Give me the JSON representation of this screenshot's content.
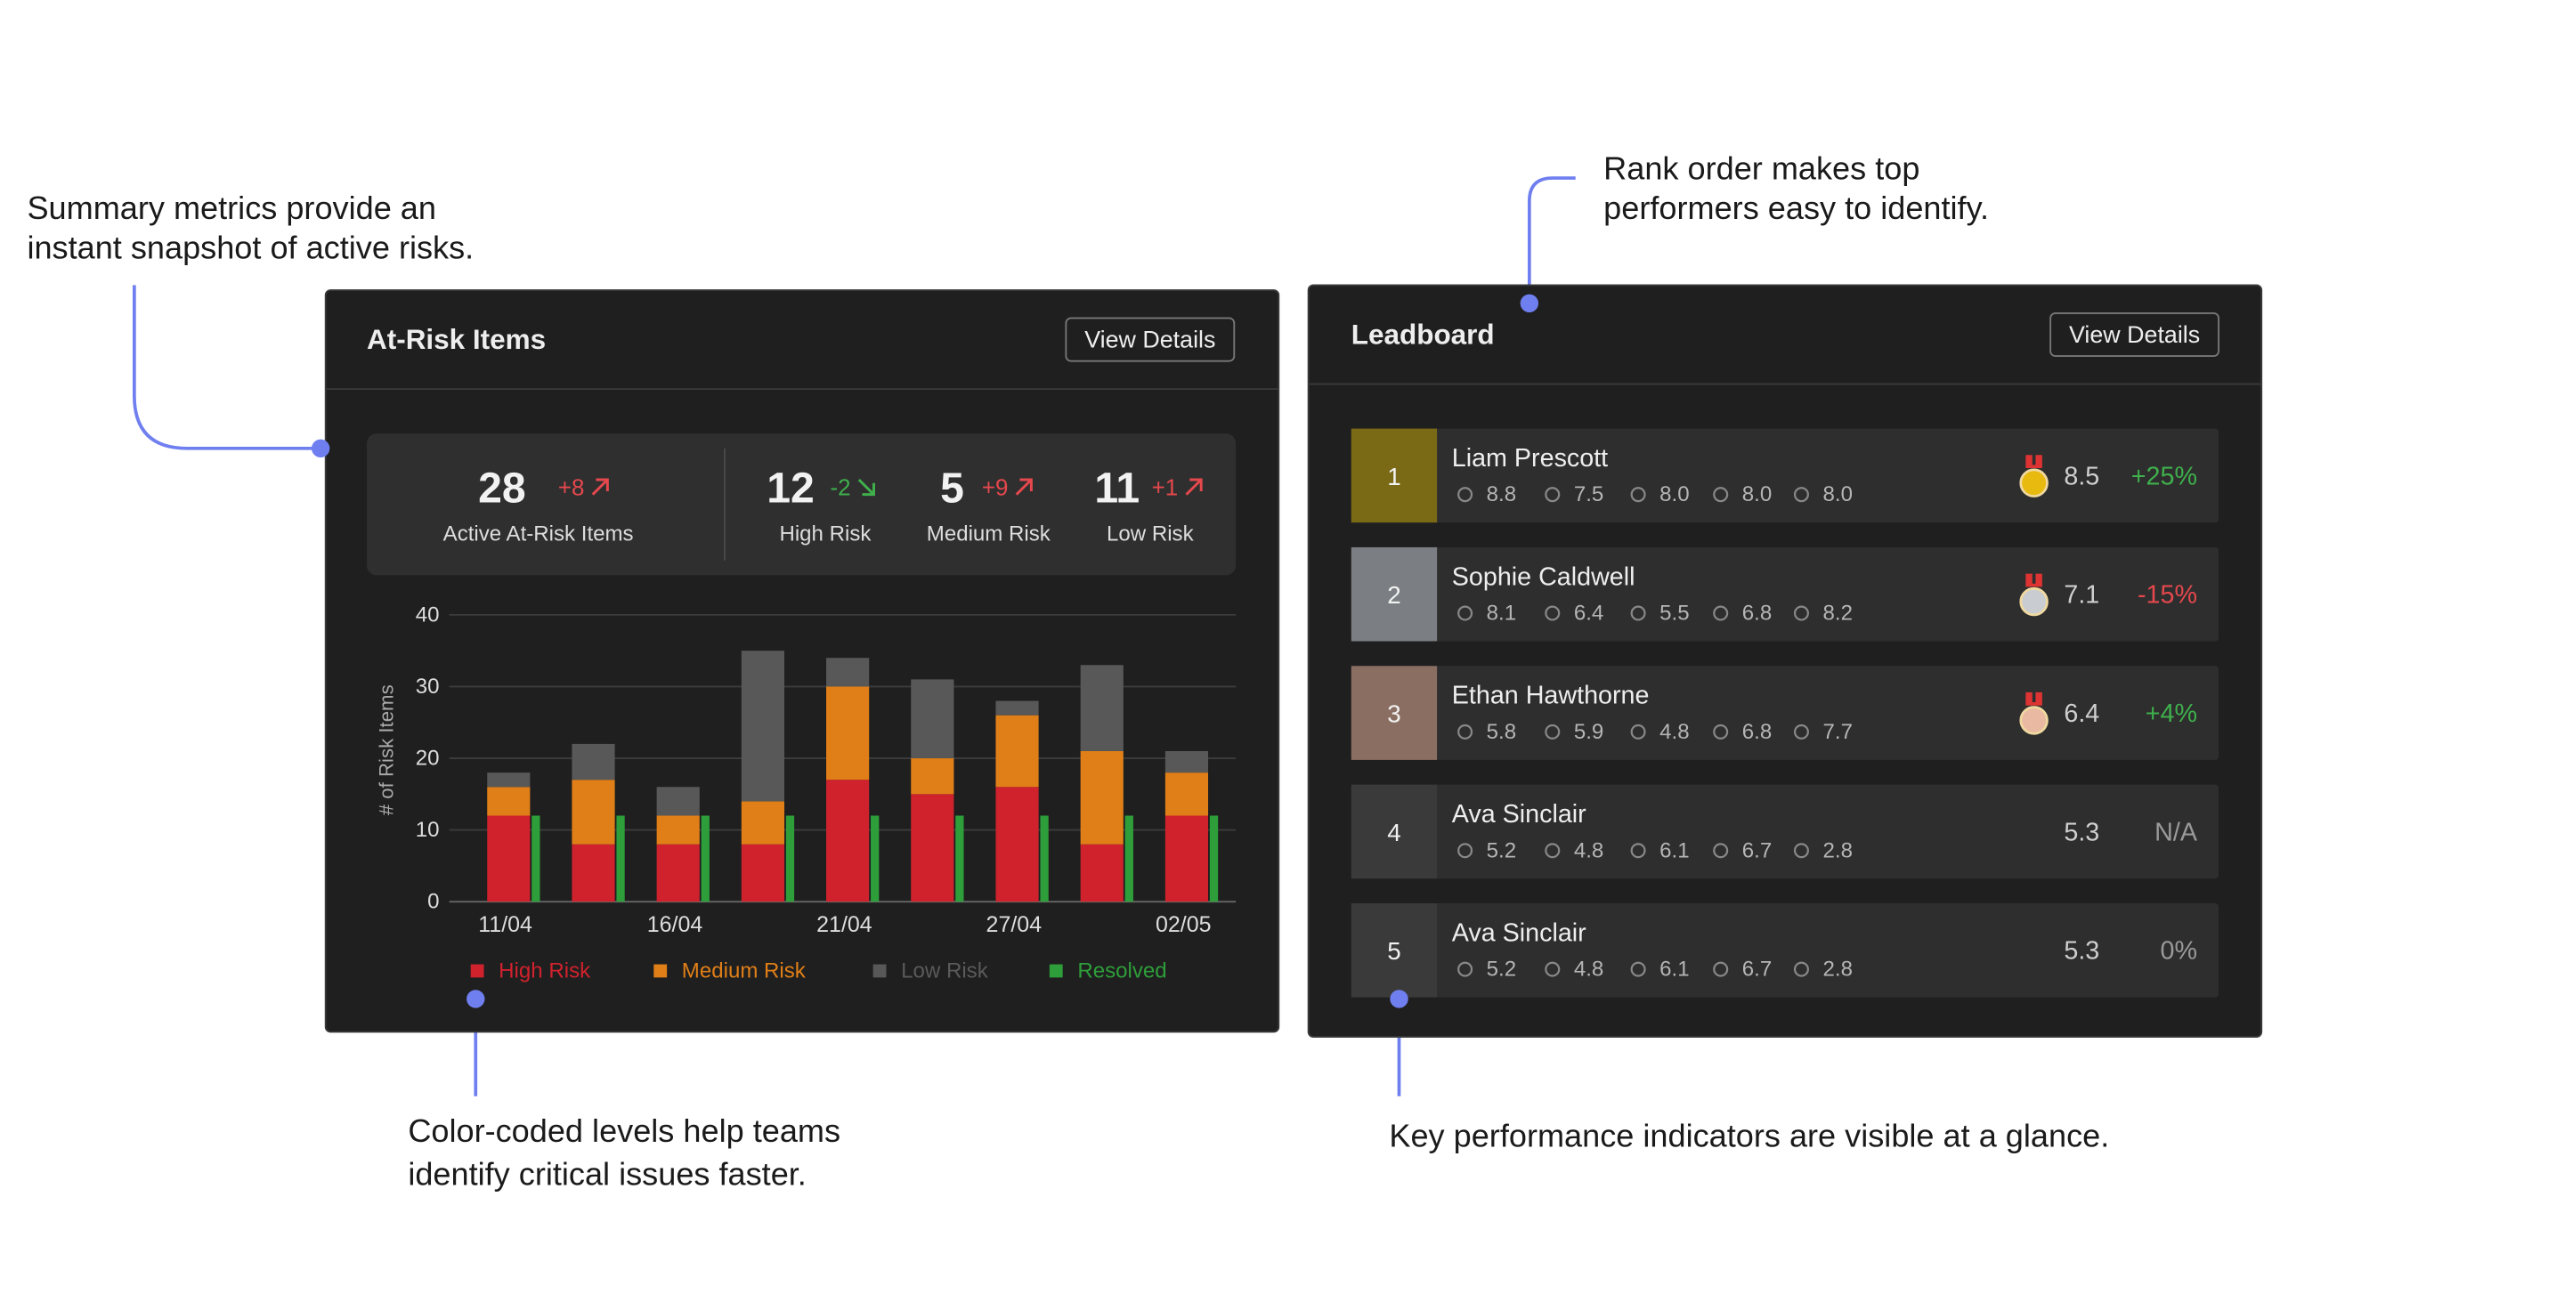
{
  "annotations": [
    {
      "lines": [
        "Summary metrics provide an",
        "instant snapshot of active risks."
      ]
    },
    {
      "lines": [
        "Rank order makes top",
        "performers easy to identify."
      ]
    },
    {
      "lines": [
        "Color-coded levels help teams",
        "identify critical issues faster."
      ]
    },
    {
      "lines": [
        "Key performance indicators are visible at a glance."
      ]
    }
  ],
  "at_risk": {
    "title": "At-Risk Items",
    "button": "View Details",
    "summary": [
      {
        "value": 28,
        "change": "+8",
        "label": "Active At-Risk Items"
      },
      {
        "value": 12,
        "change": "-2",
        "label": "High Risk"
      },
      {
        "value": 5,
        "change": "+9",
        "label": "Medium Risk"
      },
      {
        "value": 11,
        "change": "+1",
        "label": "Low Risk"
      }
    ]
  },
  "chart_data": {
    "type": "bar",
    "y_label": "# of Risk Items",
    "categories": [
      "11/04",
      null,
      "16/04",
      null,
      "21/04",
      null,
      "27/04",
      null,
      "02/05"
    ],
    "series": [
      {
        "name": "High Risk",
        "color": "#d0222d",
        "stacked": true,
        "values": [
          12,
          8,
          8,
          8,
          17,
          15,
          16,
          8,
          12
        ]
      },
      {
        "name": "Medium Risk",
        "color": "#e07f18",
        "stacked": true,
        "values": [
          4,
          9,
          4,
          6,
          13,
          5,
          10,
          13,
          6
        ]
      },
      {
        "name": "Low Risk",
        "color": "#585858",
        "stacked": true,
        "values": [
          2,
          5,
          4,
          21,
          4,
          11,
          2,
          12,
          3
        ]
      },
      {
        "name": "Resolved",
        "color": "#2e9e3a",
        "stacked": false,
        "values": [
          12,
          12,
          12,
          12,
          12,
          12,
          12,
          12,
          12
        ]
      }
    ],
    "ylim": [
      0,
      40
    ],
    "yticks": [
      0,
      10,
      20,
      30,
      40
    ],
    "grid": true
  },
  "leaderboard": {
    "title": "Leadboard",
    "button": "View Details",
    "rows": [
      {
        "rank": "1",
        "name": "Liam Prescott",
        "metrics": [
          "8.8",
          "7.5",
          "8.0",
          "8.0",
          "8.0"
        ],
        "score": "8.5",
        "change": "+25%"
      },
      {
        "rank": "2",
        "name": "Sophie Caldwell",
        "metrics": [
          "8.1",
          "6.4",
          "5.5",
          "6.8",
          "8.2"
        ],
        "score": "7.1",
        "change": "-15%"
      },
      {
        "rank": "3",
        "name": "Ethan Hawthorne",
        "metrics": [
          "5.8",
          "5.9",
          "4.8",
          "6.8",
          "7.7"
        ],
        "score": "6.4",
        "change": "+4%"
      },
      {
        "rank": "4",
        "name": "Ava Sinclair",
        "metrics": [
          "5.2",
          "4.8",
          "6.1",
          "6.7",
          "2.8"
        ],
        "score": "5.3",
        "change": "N/A"
      },
      {
        "rank": "5",
        "name": "Ava Sinclair",
        "metrics": [
          "5.2",
          "4.8",
          "6.1",
          "6.7",
          "2.8"
        ],
        "score": "5.3",
        "change": "0%"
      }
    ]
  }
}
